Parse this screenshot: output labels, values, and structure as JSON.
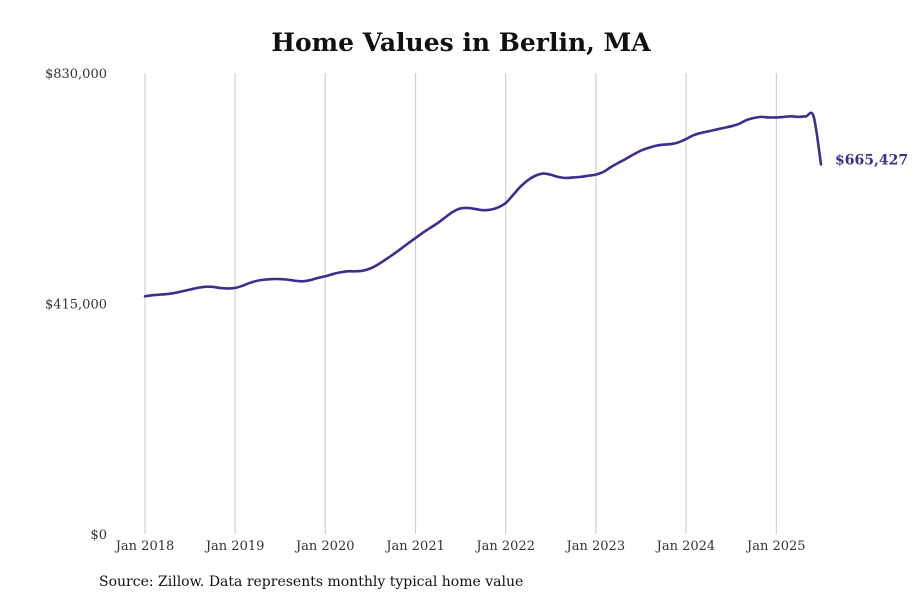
{
  "chart_data": {
    "type": "line",
    "title": "Home Values in Berlin, MA",
    "xlabel": "",
    "ylabel": "",
    "x_tick_labels": [
      "Jan 2018",
      "Jan 2019",
      "Jan 2020",
      "Jan 2021",
      "Jan 2022",
      "Jan 2023",
      "Jan 2024",
      "Jan 2025"
    ],
    "y_tick_labels": [
      "$0",
      "$415,000",
      "$830,000"
    ],
    "y_ticks": [
      0,
      415000,
      830000
    ],
    "ylim": [
      0,
      830000
    ],
    "xlim": [
      "2018-01",
      "2025-07"
    ],
    "grid": "vertical gridlines at each January",
    "legend": "none",
    "colors": {
      "line": "#3a2f8c",
      "grid": "#c8c8c8"
    },
    "end_label": "$665,427",
    "series": [
      {
        "x": [
          "2018-01",
          "2018-02",
          "2018-03",
          "2018-04",
          "2018-05",
          "2018-06",
          "2018-07",
          "2018-08",
          "2018-09",
          "2018-10",
          "2018-11",
          "2018-12",
          "2019-01",
          "2019-02",
          "2019-03",
          "2019-04",
          "2019-05",
          "2019-06",
          "2019-07",
          "2019-08",
          "2019-09",
          "2019-10",
          "2019-11",
          "2019-12",
          "2020-01",
          "2020-02",
          "2020-03",
          "2020-04",
          "2020-05",
          "2020-06",
          "2020-07",
          "2020-08",
          "2020-09",
          "2020-10",
          "2020-11",
          "2020-12",
          "2021-01",
          "2021-02",
          "2021-03",
          "2021-04",
          "2021-05",
          "2021-06",
          "2021-07",
          "2021-08",
          "2021-09",
          "2021-10",
          "2021-11",
          "2021-12",
          "2022-01",
          "2022-02",
          "2022-03",
          "2022-04",
          "2022-05",
          "2022-06",
          "2022-07",
          "2022-08",
          "2022-09",
          "2022-10",
          "2022-11",
          "2022-12",
          "2023-01",
          "2023-02",
          "2023-03",
          "2023-04",
          "2023-05",
          "2023-06",
          "2023-07",
          "2023-08",
          "2023-09",
          "2023-10",
          "2023-11",
          "2023-12",
          "2024-01",
          "2024-02",
          "2024-03",
          "2024-04",
          "2024-05",
          "2024-06",
          "2024-07",
          "2024-08",
          "2024-09",
          "2024-10",
          "2024-11",
          "2024-12",
          "2025-01",
          "2025-02",
          "2025-03",
          "2025-04",
          "2025-05",
          "2025-06",
          "2025-07"
        ],
        "values": [
          428000,
          430000,
          431000,
          432000,
          434000,
          437000,
          440000,
          443000,
          445000,
          445000,
          443000,
          442000,
          443000,
          447000,
          452000,
          456000,
          458000,
          459000,
          459000,
          458000,
          456000,
          455000,
          457000,
          461000,
          464000,
          468000,
          471000,
          473000,
          473000,
          474000,
          478000,
          485000,
          494000,
          503000,
          513000,
          523000,
          533000,
          543000,
          551000,
          560000,
          570000,
          580000,
          586000,
          587000,
          585000,
          583000,
          584000,
          588000,
          596000,
          611000,
          625000,
          637000,
          645000,
          649000,
          647000,
          643000,
          641000,
          642000,
          643000,
          645000,
          647000,
          652000,
          660000,
          668000,
          675000,
          683000,
          690000,
          695000,
          699000,
          701000,
          702000,
          705000,
          711000,
          718000,
          722000,
          725000,
          728000,
          731000,
          734000,
          738000,
          745000,
          749000,
          751000,
          750000,
          750000,
          751000,
          752000,
          751000,
          752000,
          752000,
          665427
        ]
      }
    ]
  },
  "source_note": "Source: Zillow. Data represents monthly typical home value"
}
